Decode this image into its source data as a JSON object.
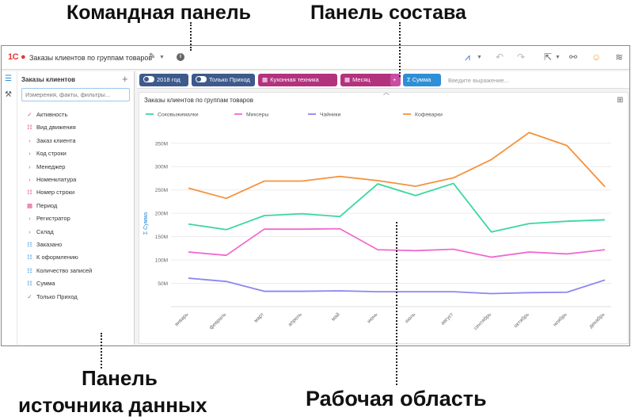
{
  "annotations": {
    "command_panel": "Командная панель",
    "composition_panel": "Панель состава",
    "source_panel_line1": "Панель",
    "source_panel_line2": "источника данных",
    "work_area": "Рабочая область"
  },
  "header": {
    "logo": "1С",
    "title": "Заказы клиентов по группам товаров"
  },
  "source": {
    "title": "Заказы клиентов",
    "search_placeholder": "Измерения, факты, фильтры...",
    "items": [
      {
        "icon": "✓",
        "color": "#e0468a",
        "label": "Активность"
      },
      {
        "icon": "☷",
        "color": "#e0468a",
        "label": "Вид движения"
      },
      {
        "icon": "›",
        "color": "#e0468a",
        "label": "Заказ клиента"
      },
      {
        "icon": "›",
        "color": "#e0468a",
        "label": "Код строки"
      },
      {
        "icon": "›",
        "color": "#e0468a",
        "label": "Менеджер"
      },
      {
        "icon": "›",
        "color": "#e0468a",
        "label": "Номенклатура"
      },
      {
        "icon": "☷",
        "color": "#e0468a",
        "label": "Номер строки"
      },
      {
        "icon": "▦",
        "color": "#e0468a",
        "label": "Период"
      },
      {
        "icon": "›",
        "color": "#e0468a",
        "label": "Регистратор"
      },
      {
        "icon": "›",
        "color": "#e0468a",
        "label": "Склад"
      },
      {
        "icon": "☷",
        "color": "#3b8fd9",
        "label": "Заказано"
      },
      {
        "icon": "☷",
        "color": "#3b8fd9",
        "label": "К оформлению"
      },
      {
        "icon": "☷",
        "color": "#3b8fd9",
        "label": "Количество записей"
      },
      {
        "icon": "☷",
        "color": "#3b8fd9",
        "label": "Сумма"
      },
      {
        "icon": "✓",
        "color": "#8a59c7",
        "label": "Только Приход"
      }
    ]
  },
  "composition": {
    "chips": [
      {
        "label": "2018 год",
        "color": "#3d5a8c",
        "kind": "toggle"
      },
      {
        "label": "Только Приход",
        "color": "#3d5a8c",
        "kind": "toggle"
      },
      {
        "label": "Кухонная техника",
        "color": "#b3327e",
        "kind": "grid"
      },
      {
        "label": "Месяц",
        "color": "#b3327e",
        "kind": "grid"
      },
      {
        "label": "Σ Сумма",
        "color": "#2f8fd6",
        "kind": "sum"
      }
    ],
    "expression_placeholder": "Введите выражение..."
  },
  "colors": {
    "orange": "#f5923e",
    "green": "#3dd6a1",
    "pink": "#f06ad0",
    "purple": "#8c87f0",
    "accent_blue": "#2f8fd6"
  },
  "chart_data": {
    "type": "line",
    "title": "Заказы клиентов по группам товаров",
    "ylabel": "Σ Сумма",
    "legend_position": "top",
    "grid": true,
    "ylim": [
      0,
      370
    ],
    "y_ticks": [
      "50M",
      "100M",
      "150M",
      "200M",
      "250M",
      "300M",
      "350M"
    ],
    "y_tick_values": [
      50,
      100,
      150,
      200,
      250,
      300,
      350
    ],
    "categories": [
      "январь",
      "февраль",
      "март",
      "апрель",
      "май",
      "июнь",
      "июль",
      "август",
      "сентябрь",
      "октябрь",
      "ноябрь",
      "декабрь"
    ],
    "series": [
      {
        "name": "Соковыжималки",
        "color": "#3dd6a1",
        "values": [
          177,
          165,
          195,
          199,
          193,
          263,
          238,
          264,
          160,
          178,
          183,
          186
        ]
      },
      {
        "name": "Миксеры",
        "color": "#f06ad0",
        "values": [
          117,
          110,
          166,
          166,
          167,
          122,
          120,
          123,
          106,
          117,
          113,
          122
        ]
      },
      {
        "name": "Чайники",
        "color": "#8c87f0",
        "values": [
          61,
          54,
          33,
          33,
          34,
          32,
          32,
          32,
          28,
          30,
          31,
          57
        ]
      },
      {
        "name": "Кофеварки",
        "color": "#f5923e",
        "values": [
          254,
          232,
          269,
          269,
          279,
          270,
          258,
          276,
          315,
          373,
          345,
          257
        ]
      }
    ]
  }
}
